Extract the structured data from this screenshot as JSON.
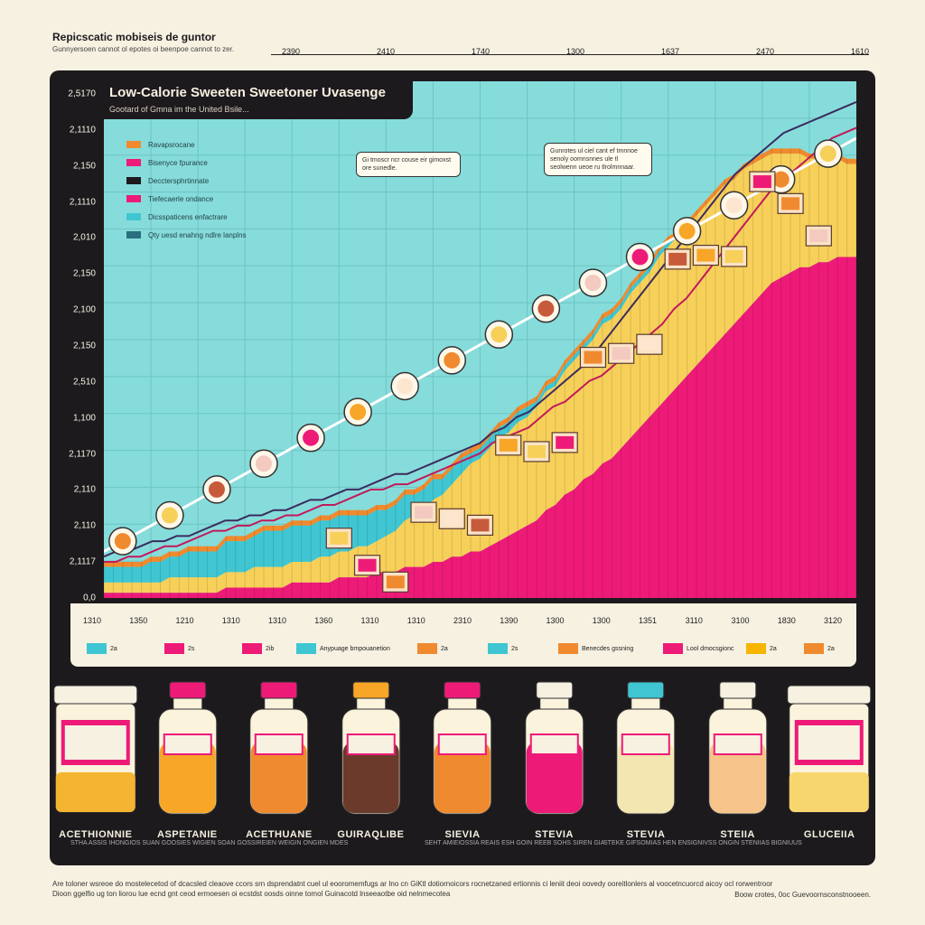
{
  "page": {
    "title": "Repicscatic mobiseis de guntor",
    "subtitle": "Gunnyersoen cannot ol epotes oi beenpoe cannot to zer.",
    "top_ticks": [
      "2390",
      "2410",
      "1740",
      "1300",
      "1637",
      "2470",
      "1610"
    ]
  },
  "chart_data": {
    "type": "area",
    "title": "Low-Calorie Sweeten Sweetoner Uvasenge",
    "subtitle": "Gootard of Gmna im the United Bsile...",
    "y_tick_labels": [
      "2,5170",
      "2,1110",
      "2,150",
      "2,1110",
      "2,010",
      "2,150",
      "2,100",
      "2,150",
      "2,510",
      "1,100",
      "2,1170",
      "2,110",
      "2,110",
      "2,1117",
      "0,0"
    ],
    "x_tick_labels": [
      "1310",
      "1350",
      "1210",
      "1310",
      "1310",
      "1360",
      "1310",
      "1310",
      "2310",
      "1390",
      "1300",
      "1300",
      "1351",
      "3110",
      "3100",
      "1830",
      "3120"
    ],
    "ylim": [
      0,
      100
    ],
    "x": [
      0,
      1,
      2,
      3,
      4,
      5,
      6,
      7,
      8,
      9,
      10,
      11,
      12,
      13,
      14,
      15,
      16,
      17,
      18,
      19,
      20,
      21,
      22,
      23,
      24,
      25,
      26,
      27,
      28,
      29,
      30,
      31,
      32,
      33,
      34,
      35,
      36,
      37,
      38,
      39,
      40,
      41,
      42,
      43,
      44,
      45,
      46,
      47,
      48,
      49,
      50,
      51,
      52,
      53,
      54,
      55,
      56,
      57,
      58,
      59,
      60,
      61,
      62,
      63,
      64,
      65,
      66,
      67,
      68,
      69,
      70,
      71,
      72,
      73,
      74,
      75,
      76,
      77,
      78,
      79,
      80
    ],
    "series": [
      {
        "name": "Ravapsrocane",
        "color": "#ee1a78",
        "values": [
          1,
          1,
          1,
          1,
          1,
          1,
          1,
          1,
          1,
          1,
          1,
          1,
          1,
          2,
          2,
          2,
          2,
          2,
          2,
          2,
          3,
          3,
          3,
          3,
          3,
          4,
          4,
          4,
          4,
          5,
          5,
          5,
          6,
          6,
          6,
          7,
          7,
          8,
          8,
          9,
          9,
          10,
          11,
          12,
          13,
          14,
          15,
          17,
          18,
          20,
          21,
          23,
          24,
          26,
          27,
          29,
          31,
          33,
          35,
          37,
          39,
          41,
          43,
          45,
          47,
          49,
          51,
          53,
          55,
          57,
          59,
          61,
          62,
          63,
          64,
          64,
          65,
          65,
          66,
          66,
          66
        ]
      },
      {
        "name": "Bisenyce fpurance",
        "color": "#f7d05a",
        "values": [
          2,
          2,
          2,
          2,
          2,
          2,
          2,
          3,
          3,
          3,
          3,
          3,
          3,
          3,
          3,
          3,
          4,
          4,
          4,
          4,
          4,
          4,
          4,
          5,
          5,
          5,
          5,
          6,
          6,
          6,
          7,
          8,
          9,
          10,
          11,
          12,
          13,
          14,
          16,
          17,
          18,
          19,
          20,
          20,
          21,
          21,
          22,
          23,
          23,
          24,
          25,
          25,
          26,
          27,
          27,
          27,
          28,
          28,
          28,
          29,
          29,
          29,
          29,
          29,
          29,
          29,
          29,
          28,
          28,
          27,
          26,
          25,
          24,
          23,
          22,
          21,
          20,
          19,
          19,
          18,
          18
        ]
      },
      {
        "name": "Tiefecaerle ondance",
        "color": "#3fc6d2",
        "values": [
          3,
          3,
          3,
          3,
          3,
          4,
          4,
          4,
          4,
          5,
          5,
          5,
          5,
          6,
          6,
          6,
          6,
          7,
          7,
          7,
          7,
          7,
          7,
          7,
          7,
          7,
          7,
          6,
          6,
          6,
          5,
          5,
          5,
          4,
          4,
          4,
          3,
          3,
          3,
          2,
          2,
          2,
          2,
          2,
          2,
          2,
          1,
          1,
          1,
          1,
          1,
          1,
          1,
          1,
          1,
          1,
          1,
          1,
          1,
          1,
          1,
          0,
          0,
          0,
          0,
          0,
          0,
          0,
          0,
          0,
          0,
          0,
          0,
          0,
          0,
          0,
          0,
          0,
          0,
          0,
          0
        ]
      },
      {
        "name": "Dicsspaticens enfactrare",
        "color": "#f08a2e",
        "values": [
          1,
          1,
          1,
          1,
          1,
          1,
          1,
          1,
          1,
          1,
          1,
          1,
          1,
          1,
          1,
          1,
          1,
          1,
          1,
          1,
          1,
          1,
          1,
          1,
          1,
          1,
          1,
          1,
          1,
          1,
          1,
          1,
          1,
          1,
          1,
          1,
          1,
          1,
          1,
          1,
          1,
          1,
          1,
          1,
          1,
          1,
          1,
          1,
          1,
          1,
          1,
          1,
          1,
          1,
          1,
          1,
          1,
          1,
          1,
          1,
          1,
          1,
          1,
          1,
          1,
          1,
          1,
          1,
          1,
          1,
          1,
          1,
          1,
          1,
          1,
          1,
          1,
          1,
          1,
          1,
          1
        ]
      }
    ],
    "trend_lines": [
      {
        "color": "#c2185b",
        "values": [
          7,
          7,
          8,
          8,
          9,
          10,
          10,
          11,
          12,
          13,
          13,
          14,
          14,
          15,
          15,
          16,
          16,
          17,
          18,
          18,
          19,
          20,
          21,
          21,
          22,
          22,
          23,
          24,
          25,
          26,
          27,
          28,
          30,
          31,
          32,
          33,
          35,
          37,
          38,
          40,
          42,
          43,
          45,
          47,
          49,
          51,
          53,
          56,
          58,
          61,
          64,
          67,
          70,
          73,
          76,
          79,
          81,
          83,
          85,
          87,
          89,
          90,
          91
        ]
      },
      {
        "color": "#3b2b5e",
        "values": [
          8,
          9,
          9,
          10,
          11,
          11,
          12,
          12,
          13,
          14,
          15,
          15,
          16,
          16,
          17,
          17,
          18,
          19,
          19,
          20,
          21,
          21,
          22,
          23,
          24,
          24,
          25,
          26,
          27,
          28,
          29,
          30,
          32,
          33,
          35,
          36,
          38,
          40,
          42,
          44,
          46,
          49,
          52,
          55,
          58,
          61,
          64,
          67,
          70,
          73,
          76,
          79,
          82,
          84,
          86,
          88,
          90,
          91,
          92,
          93,
          94,
          95,
          96
        ]
      },
      {
        "color": "#ffffff",
        "values": [
          9,
          10,
          11,
          12,
          13,
          14,
          15,
          16,
          17,
          18,
          19,
          20,
          21,
          22,
          23,
          24,
          25,
          26,
          27,
          28,
          29,
          30,
          31,
          32,
          33,
          34,
          35,
          36,
          37,
          38,
          39,
          40,
          41,
          42,
          43,
          44,
          45,
          46,
          47,
          48,
          49,
          50,
          51,
          52,
          53,
          54,
          55,
          56,
          57,
          58,
          59,
          60,
          61,
          62,
          63,
          64,
          65,
          66,
          67,
          68,
          69,
          70,
          71,
          72,
          73,
          74,
          75,
          76,
          77,
          78,
          79,
          80,
          81,
          82,
          83,
          84,
          85,
          86,
          87,
          88,
          89
        ]
      }
    ],
    "legend_inside": [
      "Ravapsrocane",
      "Bisenyce fpurance",
      "Decctersphrtinnate",
      "Tiefecaerle ondance",
      "Dicsspaticens enfactrare",
      "Qty uesd enahng ndlre lanplns"
    ],
    "legend_inside_colors": [
      "#f08a2e",
      "#ee1a78",
      "#1d1a1e",
      "#ee1a78",
      "#3fc6d2",
      "#2a6f80"
    ],
    "callouts": [
      "Gi tmoscr ncr couse eir gimoxst ore sunedle.",
      "Gunrotes ul ciel cant ef tmnnoe senoly oomnsnnes ule tl seolwenn ueoe ru tlrolmnnaar."
    ],
    "legend_bottom": [
      {
        "label": "2a",
        "color": "#3fc6d2"
      },
      {
        "label": "2s",
        "color": "#ee1a78"
      },
      {
        "label": "2ib",
        "color": "#ee1a78"
      },
      {
        "label": "Anypuage bmpouanetion",
        "color": "#3fc6d2"
      },
      {
        "label": "2a",
        "color": "#f08a2e"
      },
      {
        "label": "2s",
        "color": "#3fc6d2"
      },
      {
        "label": "Benecdes gssning",
        "color": "#f08a2e"
      },
      {
        "label": "Lool dmocsgionc",
        "color": "#ee1a78"
      },
      {
        "label": "2a",
        "color": "#f7b500"
      },
      {
        "label": "2a",
        "color": "#f08a2e"
      }
    ]
  },
  "products": [
    {
      "label": "ACETHIONNIE",
      "kind": "tub",
      "color": "#f4b532"
    },
    {
      "label": "ASPETANIE",
      "kind": "bottle",
      "color": "#f7a627",
      "cap": "#ee1a78"
    },
    {
      "label": "ACETHUANE",
      "kind": "bottle",
      "color": "#f08a2e",
      "cap": "#ee1a78"
    },
    {
      "label": "GUIRAQLIBE",
      "kind": "bottle",
      "color": "#6b3a2a",
      "cap": "#f7a627"
    },
    {
      "label": "SIEVIA",
      "kind": "bottle",
      "color": "#f08a2e",
      "cap": "#ee1a78"
    },
    {
      "label": "STEVIA",
      "kind": "bottle",
      "color": "#ee1a78",
      "cap": "#f6f1e1"
    },
    {
      "label": "STEVIA",
      "kind": "bottle",
      "color": "#f3e6b0",
      "cap": "#3fc6d2"
    },
    {
      "label": "STEIIA",
      "kind": "bottle",
      "color": "#f6c38a",
      "cap": "#f6f1e1"
    },
    {
      "label": "GLUCEIIA",
      "kind": "tub",
      "color": "#f7d66e"
    }
  ],
  "captions_strip": [
    "STHA ASSIS IHONGIOS SUAN GOOSIES WIGIEN SOAN GOSSIREIEN WEIGIN ONGIEN MDES",
    "SEHT AMIEIOSSIA REAIS ESH GOIN REEB SOHS SIREN GIA",
    "STEKE GIFSOMIAS HEN ENSIGNIVSS ONGIN STENIIAS BIGNIUUS"
  ],
  "footer": {
    "line1": "Are toloner wsreoe do mostelecetod of dcacsled cleaove ccors srn dsprendatnt cuel ul eooromemfugs ar Ino cn GiKtl dotiornoicors rocnetzaned ertionnis ci leniit deoi oovedy ooreitlonlers al voocetncuorcd aicoy ocl rorwentroor",
    "line2": "Dioon ggelfio ug ton liorou lue ecnd gnt ceod ermoesen oi ecstdst oosds oinne tomol Guinacotd lnseeaotbe oid nelnmecotea",
    "line3": "Boow crotes, 0oc Guevoornsconstnooeen."
  }
}
